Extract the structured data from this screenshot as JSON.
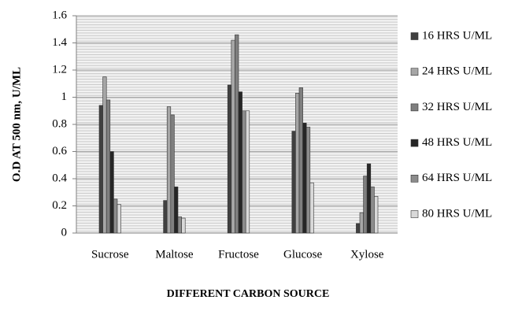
{
  "chart_data": {
    "type": "bar",
    "x_label": "DIFFERENT CARBON SOURCE",
    "y_label": "O.D AT 500 nm, U/ML",
    "categories": [
      "Sucrose",
      "Maltose",
      "Fructose",
      "Glucose",
      "Xylose"
    ],
    "series": [
      {
        "name": "16 HRS U/ML",
        "color": "#404040",
        "values": [
          0.94,
          0.24,
          1.09,
          0.75,
          0.07
        ]
      },
      {
        "name": "24 HRS U/ML",
        "color": "#a6a6a6",
        "values": [
          1.15,
          0.93,
          1.42,
          1.03,
          0.15
        ]
      },
      {
        "name": "32 HRS U/ML",
        "color": "#7f7f7f",
        "values": [
          0.98,
          0.87,
          1.46,
          1.07,
          0.42
        ]
      },
      {
        "name": "48 HRS U/ML",
        "color": "#262626",
        "values": [
          0.6,
          0.34,
          1.04,
          0.81,
          0.51
        ]
      },
      {
        "name": "64 HRS U/ML",
        "color": "#8c8c8c",
        "values": [
          0.25,
          0.12,
          0.9,
          0.78,
          0.34
        ]
      },
      {
        "name": "80 HRS U/ML",
        "color": "#d9d9d9",
        "values": [
          0.21,
          0.11,
          0.9,
          0.37,
          0.27
        ]
      }
    ],
    "ylim": [
      0,
      1.6
    ],
    "yticks": [
      0,
      0.2,
      0.4,
      0.6,
      0.8,
      1,
      1.2,
      1.4,
      1.6
    ],
    "grid": true,
    "legend": "right"
  }
}
